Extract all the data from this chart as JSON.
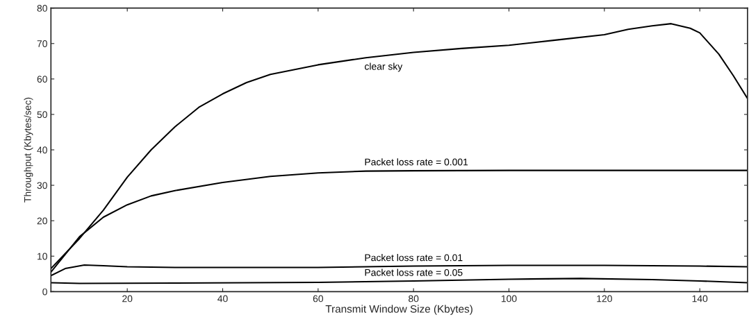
{
  "chart_data": {
    "type": "line",
    "xlabel": "Transmit Window Size (Kbytes)",
    "ylabel": "Throughput (Kbytes/sec)",
    "xlim": [
      4,
      150
    ],
    "ylim": [
      0,
      80
    ],
    "xticks": [
      20,
      40,
      60,
      80,
      100,
      120,
      140
    ],
    "yticks": [
      0,
      10,
      20,
      30,
      40,
      50,
      60,
      70,
      80
    ],
    "grid": false,
    "legend": false,
    "marker": "none",
    "line_style": "solid",
    "series": [
      {
        "name": "clear sky",
        "color": "#000000",
        "x": [
          4,
          10,
          15,
          20,
          25,
          30,
          35,
          40,
          45,
          50,
          60,
          70,
          80,
          90,
          100,
          110,
          120,
          125,
          130,
          134,
          138,
          140,
          144,
          147,
          150
        ],
        "values": [
          6.5,
          15,
          23,
          32.3,
          40,
          46.5,
          52,
          55.8,
          59,
          61.3,
          64,
          66,
          67.5,
          68.6,
          69.5,
          71,
          72.5,
          74,
          75,
          75.6,
          74.3,
          73,
          67,
          61,
          54.5
        ]
      },
      {
        "name": "Packet loss rate = 0.001",
        "color": "#000000",
        "x": [
          4,
          10,
          15,
          20,
          25,
          30,
          40,
          50,
          60,
          70,
          80,
          100,
          120,
          150
        ],
        "values": [
          5.5,
          15.5,
          21,
          24.5,
          27,
          28.5,
          30.8,
          32.5,
          33.5,
          34,
          34.1,
          34.2,
          34.2,
          34.2
        ]
      },
      {
        "name": "Packet loss rate = 0.01",
        "color": "#000000",
        "x": [
          4,
          7,
          11,
          15,
          20,
          30,
          60,
          80,
          100,
          120,
          140,
          150
        ],
        "values": [
          4.5,
          6.5,
          7.5,
          7.3,
          7,
          6.8,
          6.8,
          7.2,
          7.4,
          7.4,
          7.2,
          7
        ]
      },
      {
        "name": "Packet loss rate = 0.05",
        "color": "#000000",
        "x": [
          4,
          10,
          30,
          60,
          80,
          100,
          115,
          130,
          140,
          150
        ],
        "values": [
          2.5,
          2.3,
          2.4,
          2.6,
          3.0,
          3.5,
          3.7,
          3.4,
          3.0,
          2.5
        ]
      }
    ]
  }
}
